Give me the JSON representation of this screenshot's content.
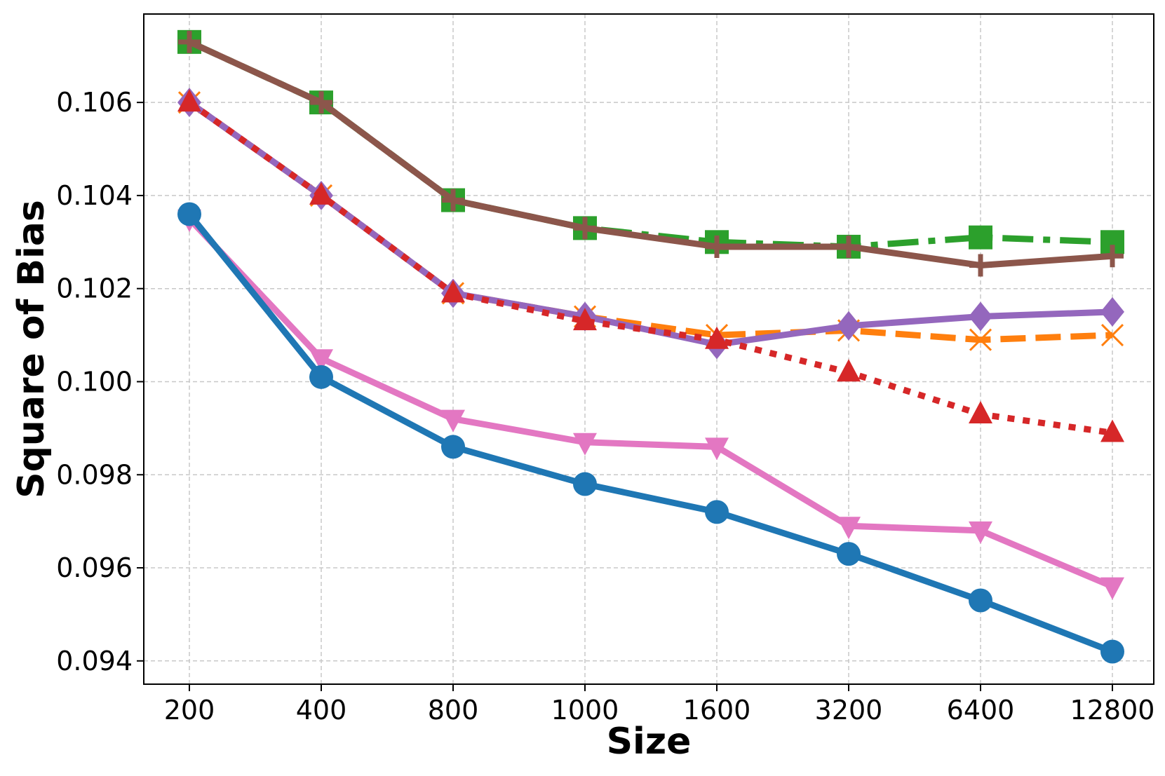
{
  "chart_data": {
    "type": "line",
    "title": "",
    "xlabel": "Size",
    "ylabel": "Square of Bias",
    "categories": [
      "200",
      "400",
      "800",
      "1000",
      "1600",
      "3200",
      "6400",
      "12800"
    ],
    "ylim": [
      0.0935,
      0.1079
    ],
    "yticks": [
      0.094,
      0.096,
      0.098,
      0.1,
      0.102,
      0.104,
      0.106
    ],
    "ytick_labels": [
      "0.094",
      "0.096",
      "0.098",
      "0.100",
      "0.102",
      "0.104",
      "0.106"
    ],
    "grid": true,
    "legend": "none",
    "series": [
      {
        "color": "#2ca02c",
        "line_style": "dashdot",
        "marker": "square",
        "values": [
          0.1073,
          0.106,
          0.1039,
          0.1033,
          0.103,
          0.1029,
          0.1031,
          0.103
        ]
      },
      {
        "color": "#8c564b",
        "line_style": "solid",
        "marker": "plus",
        "values": [
          0.1073,
          0.106,
          0.1039,
          0.1033,
          0.1029,
          0.1029,
          0.1025,
          0.1027
        ]
      },
      {
        "color": "#ff7f0e",
        "line_style": "dashed",
        "marker": "x",
        "values": [
          0.106,
          0.104,
          0.1019,
          0.1014,
          0.101,
          0.1011,
          0.1009,
          0.101
        ]
      },
      {
        "color": "#9467bd",
        "line_style": "solid",
        "marker": "diamond",
        "values": [
          0.106,
          0.104,
          0.1019,
          0.1014,
          0.1008,
          0.1012,
          0.1014,
          0.1015
        ]
      },
      {
        "color": "#d62728",
        "line_style": "dotted",
        "marker": "triangle-up",
        "values": [
          0.106,
          0.104,
          0.1019,
          0.1013,
          0.1009,
          0.1002,
          0.0993,
          0.0989
        ]
      },
      {
        "color": "#e377c2",
        "line_style": "solid",
        "marker": "triangle-down",
        "values": [
          0.1035,
          0.1005,
          0.0992,
          0.0987,
          0.0986,
          0.0969,
          0.0968,
          0.0956
        ]
      },
      {
        "color": "#1f77b4",
        "line_style": "solid",
        "marker": "circle",
        "values": [
          0.1036,
          0.1001,
          0.0986,
          0.0978,
          0.0972,
          0.0963,
          0.0953,
          0.0942
        ]
      }
    ]
  }
}
